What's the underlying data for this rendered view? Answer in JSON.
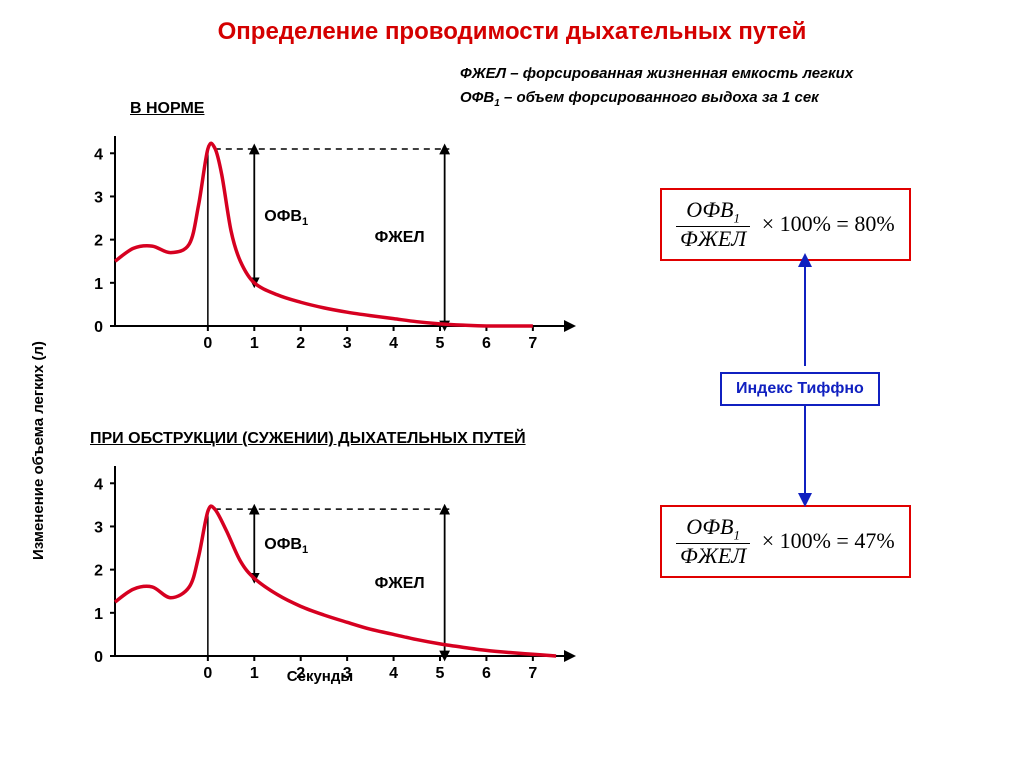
{
  "title": "Определение проводимости дыхательных путей",
  "definitions": {
    "fvc": "ФЖЕЛ – форсированная жизненная емкость легких",
    "fev1_pre": "ОФВ",
    "fev1_sub": "1",
    "fev1_post": " – объем форсированного выдоха за 1 сек"
  },
  "y_axis_label": "Изменение объема легких (л)",
  "x_axis_label": "Секунды",
  "chart_normal": {
    "heading": "В НОРМЕ",
    "type": "line",
    "x_ticks": [
      0,
      1,
      2,
      3,
      4,
      5,
      6,
      7
    ],
    "y_ticks": [
      0,
      1,
      2,
      3,
      4
    ],
    "ylim": [
      0,
      4.4
    ],
    "xlim": [
      -2,
      7.8
    ],
    "peak_y": 4.1,
    "fev1_y": 1.0,
    "curve": [
      [
        -2.0,
        1.5
      ],
      [
        -1.6,
        1.8
      ],
      [
        -1.2,
        1.85
      ],
      [
        -0.8,
        1.7
      ],
      [
        -0.4,
        1.9
      ],
      [
        -0.2,
        2.8
      ],
      [
        0.0,
        4.1
      ],
      [
        0.15,
        4.12
      ],
      [
        0.3,
        3.5
      ],
      [
        0.5,
        2.2
      ],
      [
        0.7,
        1.5
      ],
      [
        1.0,
        1.0
      ],
      [
        1.5,
        0.72
      ],
      [
        2.0,
        0.55
      ],
      [
        2.5,
        0.42
      ],
      [
        3.0,
        0.32
      ],
      [
        3.5,
        0.24
      ],
      [
        4.0,
        0.17
      ],
      [
        4.5,
        0.1
      ],
      [
        5.0,
        0.05
      ],
      [
        5.5,
        0.02
      ],
      [
        6.0,
        0.0
      ],
      [
        7.0,
        0.0
      ]
    ],
    "ann_ofv": "ОФВ",
    "ann_ofv_sub": "1",
    "ann_fvc": "ФЖЕЛ",
    "line_color": "#d60020",
    "line_width": 3.5,
    "axis_color": "#000000",
    "tick_fontsize": 16
  },
  "chart_obstruction": {
    "heading": "ПРИ ОБСТРУКЦИИ (СУЖЕНИИ) ДЫХАТЕЛЬНЫХ ПУТЕЙ",
    "type": "line",
    "x_ticks": [
      0,
      1,
      2,
      3,
      4,
      5,
      6,
      7
    ],
    "y_ticks": [
      0,
      1,
      2,
      3,
      4
    ],
    "ylim": [
      0,
      4.4
    ],
    "xlim": [
      -2,
      7.8
    ],
    "peak_y": 3.4,
    "fev1_y": 1.8,
    "curve": [
      [
        -2.0,
        1.25
      ],
      [
        -1.6,
        1.55
      ],
      [
        -1.2,
        1.6
      ],
      [
        -0.8,
        1.35
      ],
      [
        -0.4,
        1.6
      ],
      [
        -0.2,
        2.3
      ],
      [
        0.0,
        3.35
      ],
      [
        0.15,
        3.4
      ],
      [
        0.4,
        2.9
      ],
      [
        0.7,
        2.2
      ],
      [
        1.0,
        1.8
      ],
      [
        1.5,
        1.42
      ],
      [
        2.0,
        1.15
      ],
      [
        2.5,
        0.95
      ],
      [
        3.0,
        0.78
      ],
      [
        3.5,
        0.62
      ],
      [
        4.0,
        0.5
      ],
      [
        4.5,
        0.38
      ],
      [
        5.0,
        0.28
      ],
      [
        5.5,
        0.2
      ],
      [
        6.0,
        0.13
      ],
      [
        6.5,
        0.08
      ],
      [
        7.0,
        0.04
      ],
      [
        7.5,
        0.0
      ]
    ],
    "ann_ofv": "ОФВ",
    "ann_ofv_sub": "1",
    "ann_fvc": "ФЖЕЛ",
    "line_color": "#d60020",
    "line_width": 3.5,
    "axis_color": "#000000",
    "tick_fontsize": 16
  },
  "formula_normal": {
    "num_pre": "ОФВ",
    "num_sub": "1",
    "den": "ФЖЕЛ",
    "rest": "× 100% = 80%"
  },
  "formula_obstruction": {
    "num_pre": "ОФВ",
    "num_sub": "1",
    "den": "ФЖЕЛ",
    "rest": "× 100% = 47%"
  },
  "index_label": "Индекс Тиффно",
  "arrow_color": "#1020c0",
  "formula_border": "#e00000",
  "index_border": "#1020c0"
}
